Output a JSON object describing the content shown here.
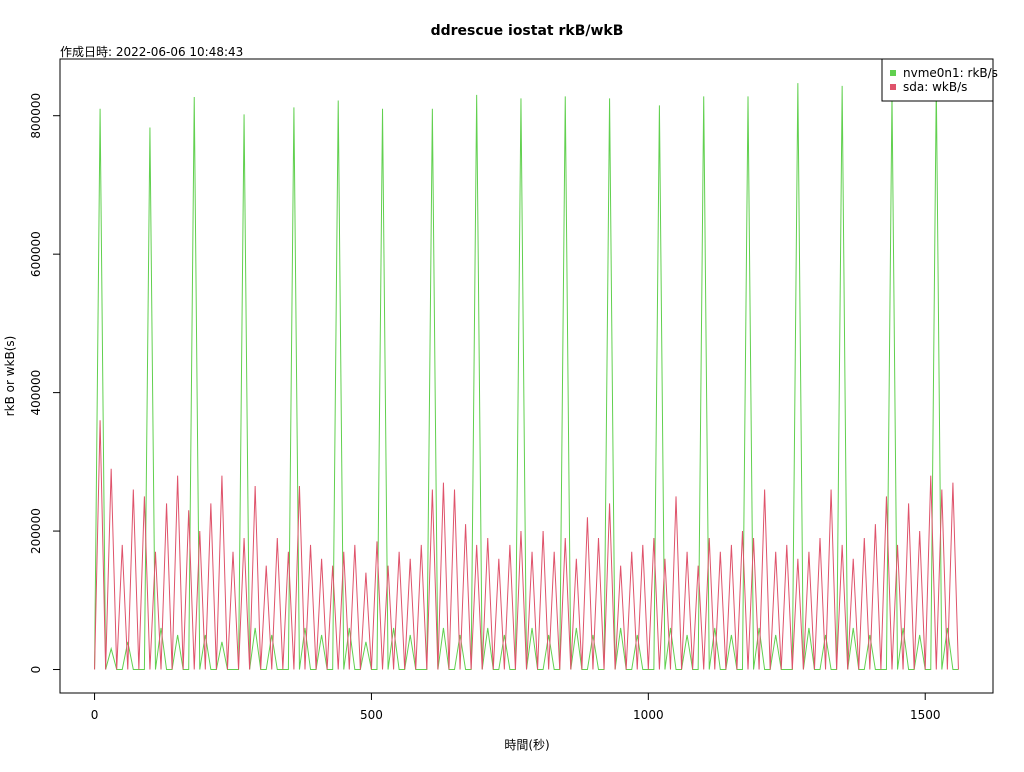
{
  "chart_data": {
    "type": "line",
    "title": "ddrescue iostat rkB/wkB",
    "subtitle": "作成日時: 2022-06-06 10:48:43",
    "x_label": "時間(秒)",
    "y_label": "rkB or wkB(s)",
    "x": [
      0,
      10,
      20,
      30,
      40,
      50,
      60,
      70,
      80,
      90,
      100,
      110,
      120,
      130,
      140,
      150,
      160,
      170,
      180,
      190,
      200,
      210,
      220,
      230,
      240,
      250,
      260,
      270,
      280,
      290,
      300,
      310,
      320,
      330,
      340,
      350,
      360,
      370,
      380,
      390,
      400,
      410,
      420,
      430,
      440,
      450,
      460,
      470,
      480,
      490,
      500,
      510,
      520,
      530,
      540,
      550,
      560,
      570,
      580,
      590,
      600,
      610,
      620,
      630,
      640,
      650,
      660,
      670,
      680,
      690,
      700,
      710,
      720,
      730,
      740,
      750,
      760,
      770,
      780,
      790,
      800,
      810,
      820,
      830,
      840,
      850,
      860,
      870,
      880,
      890,
      900,
      910,
      920,
      930,
      940,
      950,
      960,
      970,
      980,
      990,
      1000,
      1010,
      1020,
      1030,
      1040,
      1050,
      1060,
      1070,
      1080,
      1090,
      1100,
      1110,
      1120,
      1130,
      1140,
      1150,
      1160,
      1170,
      1180,
      1190,
      1200,
      1210,
      1220,
      1230,
      1240,
      1250,
      1260,
      1270,
      1280,
      1290,
      1300,
      1310,
      1320,
      1330,
      1340,
      1350,
      1360,
      1370,
      1380,
      1390,
      1400,
      1410,
      1420,
      1430,
      1440,
      1450,
      1460,
      1470,
      1480,
      1490,
      1500,
      1510,
      1520,
      1530,
      1540,
      1550,
      1560
    ],
    "series": [
      {
        "name": "nvme0n1: rkB/s",
        "color": "#61d04f",
        "values": [
          0,
          810000,
          0,
          30000,
          0,
          0,
          40000,
          0,
          0,
          0,
          783000,
          0,
          60000,
          0,
          0,
          50000,
          0,
          0,
          827000,
          0,
          50000,
          0,
          0,
          40000,
          0,
          0,
          0,
          802000,
          0,
          60000,
          0,
          0,
          50000,
          0,
          0,
          0,
          812000,
          0,
          60000,
          0,
          0,
          50000,
          0,
          0,
          822000,
          0,
          60000,
          0,
          0,
          40000,
          0,
          0,
          810000,
          0,
          60000,
          0,
          0,
          50000,
          0,
          0,
          0,
          810000,
          0,
          60000,
          0,
          0,
          50000,
          0,
          0,
          830000,
          0,
          60000,
          0,
          0,
          50000,
          0,
          0,
          825000,
          0,
          60000,
          0,
          0,
          50000,
          0,
          0,
          828000,
          0,
          60000,
          0,
          0,
          50000,
          0,
          0,
          825000,
          0,
          60000,
          0,
          0,
          50000,
          0,
          0,
          0,
          815000,
          0,
          60000,
          0,
          0,
          50000,
          0,
          0,
          828000,
          0,
          60000,
          0,
          0,
          50000,
          0,
          0,
          828000,
          0,
          60000,
          0,
          0,
          50000,
          0,
          0,
          0,
          847000,
          0,
          60000,
          0,
          0,
          50000,
          0,
          0,
          843000,
          0,
          60000,
          0,
          0,
          50000,
          0,
          0,
          0,
          832000,
          0,
          60000,
          0,
          0,
          50000,
          0,
          0,
          845000,
          0,
          60000,
          0,
          0
        ]
      },
      {
        "name": "sda: wkB/s",
        "color": "#df536b",
        "values": [
          0,
          360000,
          0,
          290000,
          0,
          180000,
          0,
          260000,
          0,
          250000,
          0,
          170000,
          0,
          240000,
          0,
          280000,
          0,
          230000,
          0,
          200000,
          0,
          240000,
          0,
          280000,
          0,
          170000,
          0,
          190000,
          0,
          265000,
          0,
          150000,
          0,
          190000,
          0,
          170000,
          0,
          265000,
          0,
          180000,
          0,
          160000,
          0,
          150000,
          0,
          170000,
          0,
          180000,
          0,
          140000,
          0,
          185000,
          0,
          150000,
          0,
          170000,
          0,
          160000,
          0,
          180000,
          0,
          260000,
          0,
          270000,
          0,
          260000,
          0,
          210000,
          0,
          180000,
          0,
          190000,
          0,
          160000,
          0,
          180000,
          0,
          200000,
          0,
          170000,
          0,
          200000,
          0,
          170000,
          0,
          190000,
          0,
          160000,
          0,
          220000,
          0,
          190000,
          0,
          240000,
          0,
          150000,
          0,
          170000,
          0,
          180000,
          0,
          190000,
          0,
          160000,
          0,
          250000,
          0,
          170000,
          0,
          150000,
          0,
          190000,
          0,
          170000,
          0,
          180000,
          0,
          200000,
          0,
          190000,
          0,
          260000,
          0,
          170000,
          0,
          180000,
          0,
          160000,
          0,
          170000,
          0,
          190000,
          0,
          260000,
          0,
          180000,
          0,
          160000,
          0,
          190000,
          0,
          210000,
          0,
          250000,
          0,
          180000,
          0,
          240000,
          0,
          200000,
          0,
          280000,
          0,
          260000,
          0,
          270000,
          0
        ]
      }
    ],
    "xlim": [
      -62.4,
      1622.4
    ],
    "ylim": [
      -33920,
      881920
    ],
    "xticks": [
      0,
      500,
      1000,
      1500
    ],
    "yticks": [
      0,
      200000,
      400000,
      600000,
      800000
    ],
    "legend": "top-right"
  }
}
